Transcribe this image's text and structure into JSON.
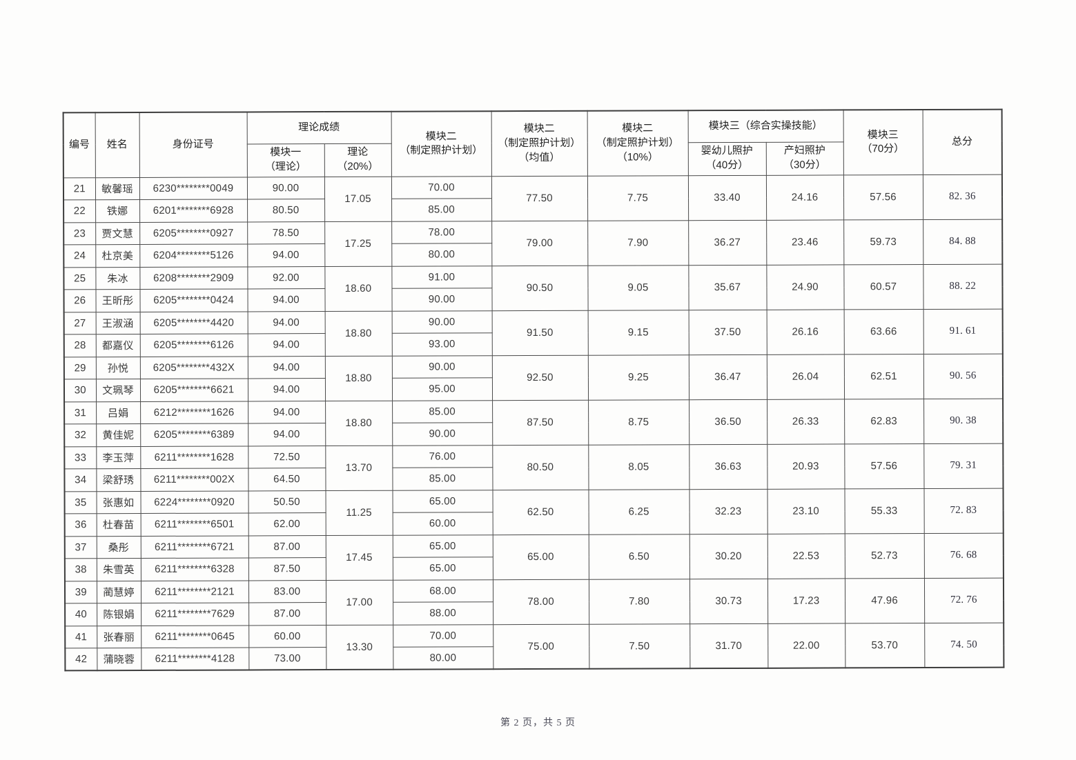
{
  "page": {
    "footer": "第 2 页，共 5 页"
  },
  "table": {
    "headers": {
      "no": "编号",
      "name": "姓名",
      "id_number": "身份证号",
      "theory_group": "理论成绩",
      "module1": "模块一\n（理论）",
      "theory20": "理论\n（20%）",
      "module2": "模块二\n（制定照护计划）",
      "module2_avg": "模块二\n（制定照护计划）\n（均值）",
      "module2_pct": "模块二\n（制定照护计划）\n（10%）",
      "module3_group": "模块三（综合实操技能）",
      "infant": "婴幼儿照护\n（40分）",
      "maternal": "产妇照护\n（30分）",
      "module3_70": "模块三\n（70分）",
      "total": "总分"
    },
    "groups": [
      {
        "rows": [
          {
            "no": "21",
            "name": "敏馨瑶",
            "id": "6230********0049",
            "module1": "90.00",
            "module2": "70.00"
          },
          {
            "no": "22",
            "name": "铁娜",
            "id": "6201********6928",
            "module1": "80.50",
            "module2": "85.00"
          }
        ],
        "theory20": "17.05",
        "module2_avg": "77.50",
        "module2_pct": "7.75",
        "infant": "33.40",
        "maternal": "24.16",
        "module3": "57.56",
        "total": "82. 36"
      },
      {
        "rows": [
          {
            "no": "23",
            "name": "贾文慧",
            "id": "6205********0927",
            "module1": "78.50",
            "module2": "78.00"
          },
          {
            "no": "24",
            "name": "杜京美",
            "id": "6204********5126",
            "module1": "94.00",
            "module2": "80.00"
          }
        ],
        "theory20": "17.25",
        "module2_avg": "79.00",
        "module2_pct": "7.90",
        "infant": "36.27",
        "maternal": "23.46",
        "module3": "59.73",
        "total": "84. 88"
      },
      {
        "rows": [
          {
            "no": "25",
            "name": "朱冰",
            "id": "6208********2909",
            "module1": "92.00",
            "module2": "91.00"
          },
          {
            "no": "26",
            "name": "王昕彤",
            "id": "6205********0424",
            "module1": "94.00",
            "module2": "90.00"
          }
        ],
        "theory20": "18.60",
        "module2_avg": "90.50",
        "module2_pct": "9.05",
        "infant": "35.67",
        "maternal": "24.90",
        "module3": "60.57",
        "total": "88. 22"
      },
      {
        "rows": [
          {
            "no": "27",
            "name": "王淑涵",
            "id": "6205********4420",
            "module1": "94.00",
            "module2": "90.00"
          },
          {
            "no": "28",
            "name": "都嘉仪",
            "id": "6205********6126",
            "module1": "94.00",
            "module2": "93.00"
          }
        ],
        "theory20": "18.80",
        "module2_avg": "91.50",
        "module2_pct": "9.15",
        "infant": "37.50",
        "maternal": "26.16",
        "module3": "63.66",
        "total": "91. 61"
      },
      {
        "rows": [
          {
            "no": "29",
            "name": "孙悦",
            "id": "6205********432X",
            "module1": "94.00",
            "module2": "90.00"
          },
          {
            "no": "30",
            "name": "文珮琴",
            "id": "6205********6621",
            "module1": "94.00",
            "module2": "95.00"
          }
        ],
        "theory20": "18.80",
        "module2_avg": "92.50",
        "module2_pct": "9.25",
        "infant": "36.47",
        "maternal": "26.04",
        "module3": "62.51",
        "total": "90. 56"
      },
      {
        "rows": [
          {
            "no": "31",
            "name": "吕娟",
            "id": "6212********1626",
            "module1": "94.00",
            "module2": "85.00"
          },
          {
            "no": "32",
            "name": "黄佳妮",
            "id": "6205********6389",
            "module1": "94.00",
            "module2": "90.00"
          }
        ],
        "theory20": "18.80",
        "module2_avg": "87.50",
        "module2_pct": "8.75",
        "infant": "36.50",
        "maternal": "26.33",
        "module3": "62.83",
        "total": "90. 38"
      },
      {
        "rows": [
          {
            "no": "33",
            "name": "李玉萍",
            "id": "6211********1628",
            "module1": "72.50",
            "module2": "76.00"
          },
          {
            "no": "34",
            "name": "梁舒琇",
            "id": "6211********002X",
            "module1": "64.50",
            "module2": "85.00"
          }
        ],
        "theory20": "13.70",
        "module2_avg": "80.50",
        "module2_pct": "8.05",
        "infant": "36.63",
        "maternal": "20.93",
        "module3": "57.56",
        "total": "79. 31"
      },
      {
        "rows": [
          {
            "no": "35",
            "name": "张惠如",
            "id": "6224********0920",
            "module1": "50.50",
            "module2": "65.00"
          },
          {
            "no": "36",
            "name": "杜春苗",
            "id": "6211********6501",
            "module1": "62.00",
            "module2": "60.00"
          }
        ],
        "theory20": "11.25",
        "module2_avg": "62.50",
        "module2_pct": "6.25",
        "infant": "32.23",
        "maternal": "23.10",
        "module3": "55.33",
        "total": "72. 83"
      },
      {
        "rows": [
          {
            "no": "37",
            "name": "桑彤",
            "id": "6211********6721",
            "module1": "87.00",
            "module2": "65.00"
          },
          {
            "no": "38",
            "name": "朱雪英",
            "id": "6211********6328",
            "module1": "87.50",
            "module2": "65.00"
          }
        ],
        "theory20": "17.45",
        "module2_avg": "65.00",
        "module2_pct": "6.50",
        "infant": "30.20",
        "maternal": "22.53",
        "module3": "52.73",
        "total": "76. 68"
      },
      {
        "rows": [
          {
            "no": "39",
            "name": "蔺慧婷",
            "id": "6211********2121",
            "module1": "83.00",
            "module2": "68.00"
          },
          {
            "no": "40",
            "name": "陈银娟",
            "id": "6211********7629",
            "module1": "87.00",
            "module2": "88.00"
          }
        ],
        "theory20": "17.00",
        "module2_avg": "78.00",
        "module2_pct": "7.80",
        "infant": "30.73",
        "maternal": "17.23",
        "module3": "47.96",
        "total": "72. 76"
      },
      {
        "rows": [
          {
            "no": "41",
            "name": "张春丽",
            "id": "6211********0645",
            "module1": "60.00",
            "module2": "70.00"
          },
          {
            "no": "42",
            "name": "蒲晓蓉",
            "id": "6211********4128",
            "module1": "73.00",
            "module2": "80.00"
          }
        ],
        "theory20": "13.30",
        "module2_avg": "75.00",
        "module2_pct": "7.50",
        "infant": "31.70",
        "maternal": "22.00",
        "module3": "53.70",
        "total": "74. 50"
      }
    ]
  }
}
